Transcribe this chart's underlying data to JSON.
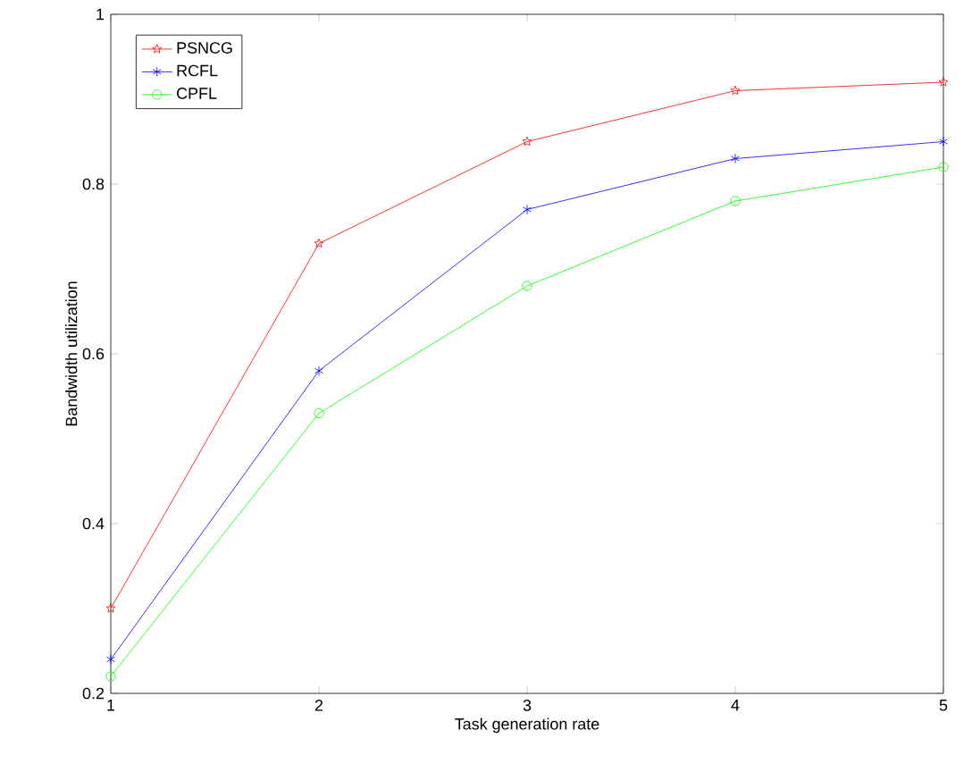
{
  "chart_data": {
    "type": "line",
    "xlabel": "Task generation rate",
    "ylabel": "Bandwidth utilization",
    "x": [
      1,
      2,
      3,
      4,
      5
    ],
    "series": [
      {
        "name": "PSNCG",
        "color": "#ff0000",
        "marker": "star",
        "values": [
          0.3,
          0.73,
          0.85,
          0.91,
          0.92
        ]
      },
      {
        "name": "RCFL",
        "color": "#0000ff",
        "marker": "cross",
        "values": [
          0.24,
          0.58,
          0.77,
          0.83,
          0.85
        ]
      },
      {
        "name": "CPFL",
        "color": "#00ff00",
        "marker": "circle",
        "values": [
          0.22,
          0.53,
          0.68,
          0.78,
          0.82
        ]
      }
    ],
    "xlim": [
      1,
      5
    ],
    "ylim": [
      0.2,
      1
    ],
    "xticks": [
      1,
      2,
      3,
      4,
      5
    ],
    "yticks": [
      0.2,
      0.4,
      0.6,
      0.8,
      1
    ],
    "grid": false,
    "legend": "top left",
    "line_style": "solid"
  }
}
